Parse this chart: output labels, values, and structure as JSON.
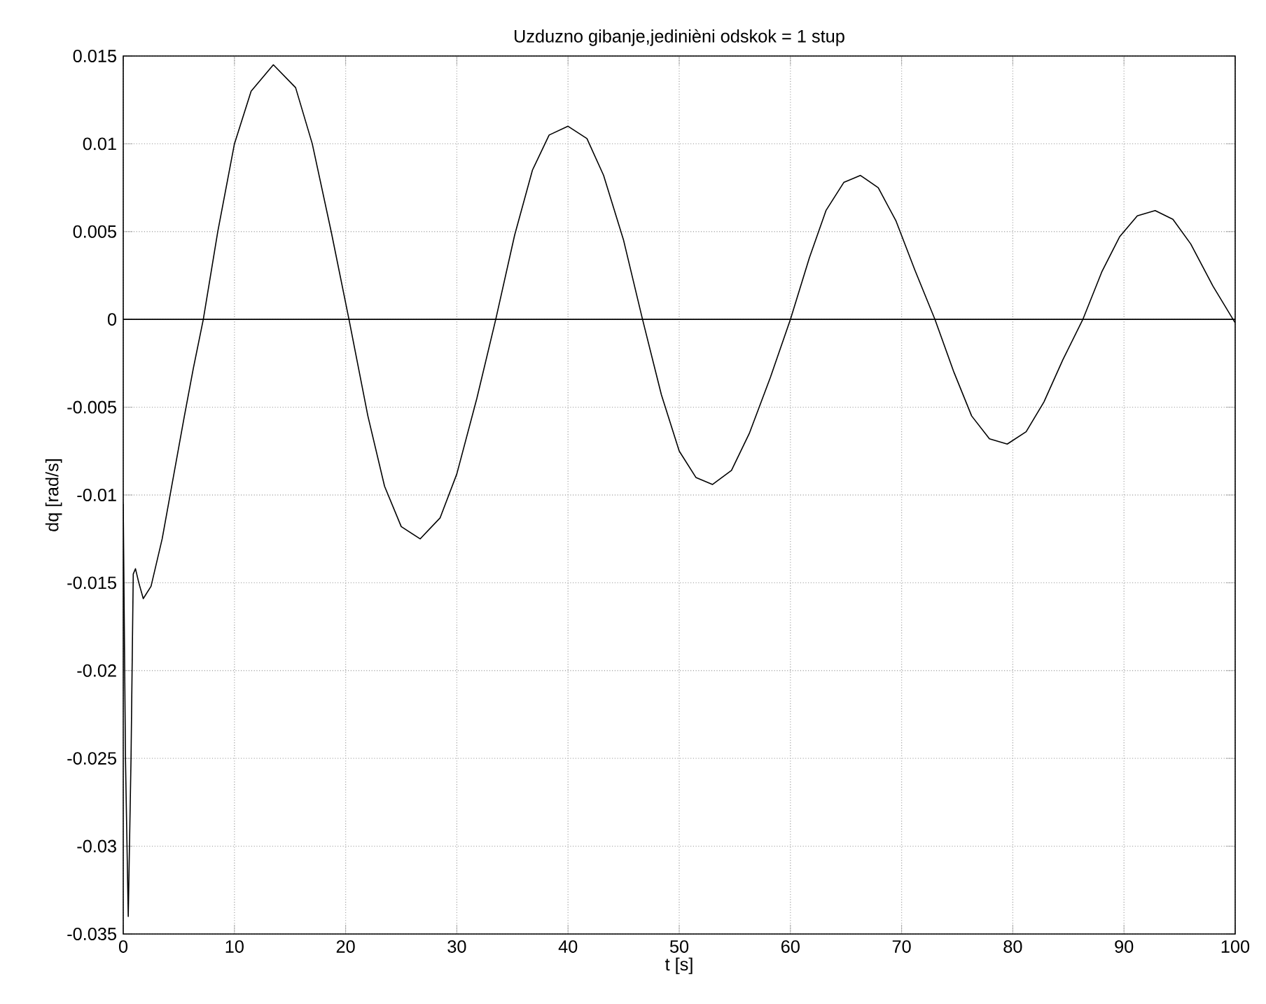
{
  "chart_data": {
    "type": "line",
    "title": "Uzduzno gibanje,jedinièni odskok = 1 stup",
    "xlabel": "t [s]",
    "ylabel": "dq [rad/s]",
    "x": [
      0,
      0.2,
      0.45,
      0.7,
      0.9,
      1.1,
      1.4,
      1.8,
      2.5,
      3.5,
      4.5,
      5.5,
      6.3,
      7.2,
      8.5,
      10,
      11.5,
      13.5,
      15.5,
      17,
      18.7,
      20.3,
      22,
      23.5,
      25,
      26.7,
      28.5,
      30,
      31.8,
      33.5,
      35.2,
      36.8,
      38.3,
      40,
      41.7,
      43.2,
      45,
      46.7,
      48.4,
      50,
      51.5,
      53,
      54.7,
      56.3,
      58.2,
      60,
      61.7,
      63.2,
      64.8,
      66.3,
      67.9,
      69.5,
      71.2,
      73,
      74.7,
      76.3,
      77.9,
      79.5,
      81.2,
      82.8,
      84.5,
      86.3,
      88,
      89.6,
      91.2,
      92.8,
      94.4,
      96,
      98,
      100
    ],
    "values": [
      -0.0105,
      -0.025,
      -0.034,
      -0.025,
      -0.0145,
      -0.0142,
      -0.015,
      -0.0159,
      -0.0152,
      -0.0125,
      -0.009,
      -0.0055,
      -0.0028,
      0,
      0.005,
      0.01,
      0.013,
      0.0145,
      0.0132,
      0.01,
      0.005,
      0,
      -0.0055,
      -0.0095,
      -0.0118,
      -0.0125,
      -0.0113,
      -0.0088,
      -0.0045,
      0,
      0.0048,
      0.0085,
      0.0105,
      0.011,
      0.0103,
      0.0082,
      0.0045,
      0,
      -0.0043,
      -0.0075,
      -0.009,
      -0.0094,
      -0.0086,
      -0.0065,
      -0.0033,
      0,
      0.0035,
      0.0062,
      0.0078,
      0.0082,
      0.0075,
      0.0056,
      0.0028,
      0,
      -0.003,
      -0.0055,
      -0.0068,
      -0.0071,
      -0.0064,
      -0.0047,
      -0.0023,
      0,
      0.0027,
      0.0047,
      0.0059,
      0.0062,
      0.0057,
      0.0043,
      0.0019,
      -0.0002
    ],
    "color": "#000000",
    "xlim": [
      0,
      100
    ],
    "ylim": [
      -0.035,
      0.015
    ],
    "xticks": [
      0,
      10,
      20,
      30,
      40,
      50,
      60,
      70,
      80,
      90,
      100
    ],
    "yticks": [
      -0.035,
      -0.03,
      -0.025,
      -0.02,
      -0.015,
      -0.01,
      -0.005,
      0,
      0.005,
      0.01,
      0.015
    ],
    "grid": true,
    "ref_lines": [
      {
        "axis": "y",
        "value": 0,
        "color": "#000000"
      }
    ]
  }
}
